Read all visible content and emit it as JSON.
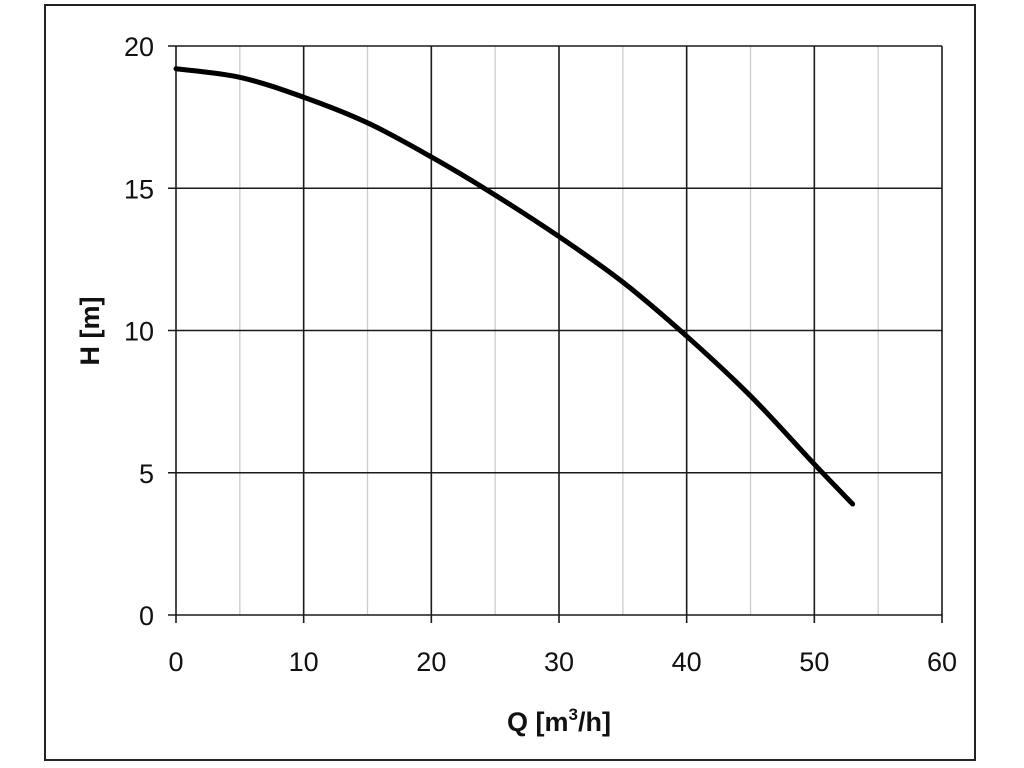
{
  "chart_data": {
    "type": "line",
    "title": "",
    "xlabel": "Q [m3/h]",
    "xlabel_parts": {
      "base": "Q [m",
      "superscript": "3",
      "suffix": "/h]"
    },
    "ylabel": "H [m]",
    "xlim": [
      0,
      60
    ],
    "ylim": [
      0,
      20
    ],
    "x_ticks": [
      0,
      10,
      20,
      30,
      40,
      50,
      60
    ],
    "y_ticks": [
      0,
      5,
      10,
      15,
      20
    ],
    "x_minor_ticks": [
      5,
      15,
      25,
      35,
      45,
      55
    ],
    "grid": true,
    "legend": "none",
    "colors": {
      "line": "#000000",
      "major_grid": "#1a1a1a",
      "minor_grid": "#cccccc",
      "frame": "#222222"
    },
    "series": [
      {
        "x": [
          0,
          5,
          10,
          15,
          20,
          24.5,
          30,
          35,
          40,
          45,
          50,
          53
        ],
        "y": [
          19.2,
          18.9,
          18.2,
          17.3,
          16.1,
          14.9,
          13.3,
          11.7,
          9.8,
          7.7,
          5.3,
          3.9
        ]
      }
    ]
  }
}
